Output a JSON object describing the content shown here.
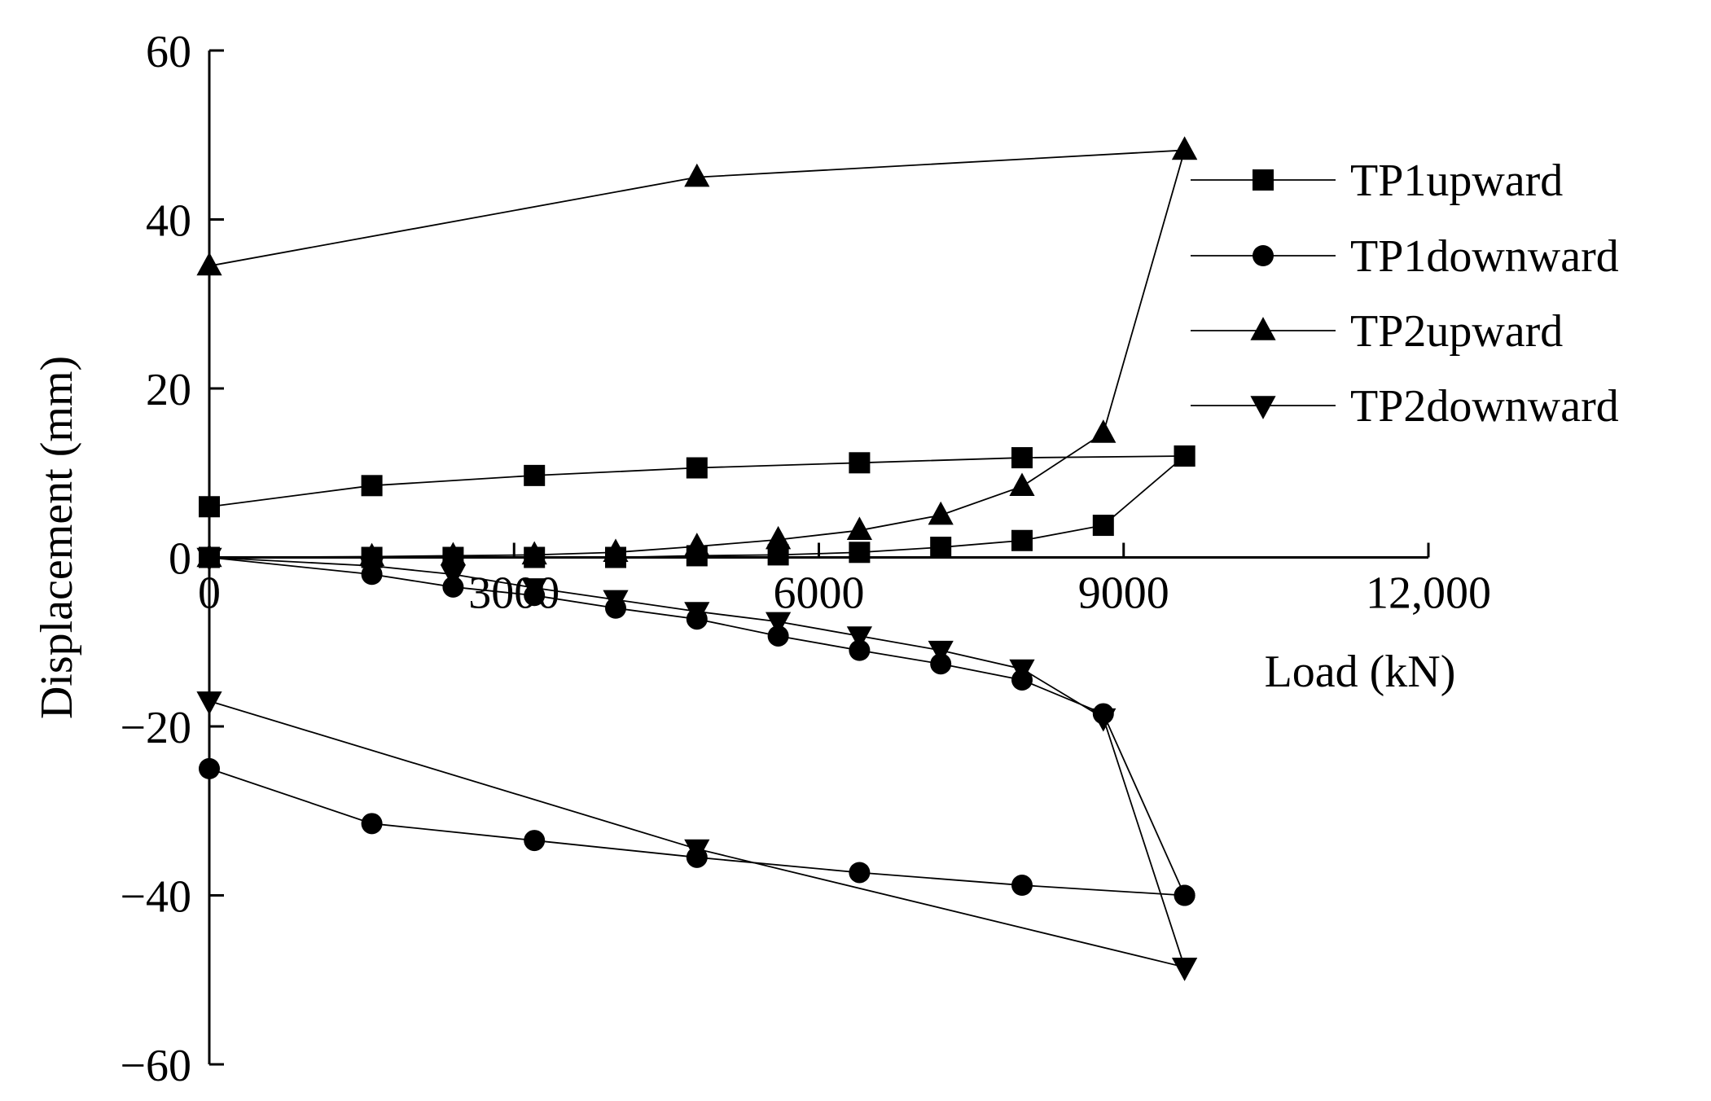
{
  "chart_data": {
    "type": "line",
    "title": "",
    "xlabel": "Load (kN)",
    "ylabel": "Displacement (mm)",
    "xlim": [
      0,
      12000
    ],
    "ylim": [
      -60,
      60
    ],
    "x_ticks": [
      0,
      3000,
      6000,
      9000,
      12000
    ],
    "x_tick_labels": [
      "0",
      "3000",
      "6000",
      "9000",
      "12,000"
    ],
    "y_ticks": [
      -60,
      -40,
      -20,
      0,
      20,
      40,
      60
    ],
    "y_tick_labels": [
      "−60",
      "−40",
      "−20",
      "0",
      "20",
      "40",
      "60"
    ],
    "grid": false,
    "legend_position": "right",
    "series": [
      {
        "name": "TP1upward",
        "marker": "square",
        "color": "#000000",
        "segments": [
          [
            [
              0,
              0
            ],
            [
              1600,
              0
            ],
            [
              2400,
              0
            ],
            [
              3200,
              0
            ],
            [
              4000,
              0
            ],
            [
              4800,
              0.2
            ],
            [
              5600,
              0.3
            ],
            [
              6400,
              0.6
            ],
            [
              7200,
              1.2
            ],
            [
              8000,
              2
            ],
            [
              8800,
              3.8
            ],
            [
              9600,
              12
            ]
          ],
          [
            [
              0,
              6
            ],
            [
              1600,
              8.5
            ],
            [
              3200,
              9.7
            ],
            [
              4800,
              10.6
            ],
            [
              6400,
              11.2
            ],
            [
              8000,
              11.8
            ],
            [
              9600,
              12
            ]
          ]
        ]
      },
      {
        "name": "TP1downward",
        "marker": "circle",
        "color": "#000000",
        "segments": [
          [
            [
              0,
              0
            ],
            [
              1600,
              -2
            ],
            [
              2400,
              -3.5
            ],
            [
              3200,
              -4.5
            ],
            [
              4000,
              -6
            ],
            [
              4800,
              -7.3
            ],
            [
              5600,
              -9.3
            ],
            [
              6400,
              -11
            ],
            [
              7200,
              -12.6
            ],
            [
              8000,
              -14.5
            ],
            [
              8800,
              -18.5
            ],
            [
              9600,
              -40
            ]
          ],
          [
            [
              0,
              -25
            ],
            [
              1600,
              -31.5
            ],
            [
              3200,
              -33.5
            ],
            [
              4800,
              -35.5
            ],
            [
              6400,
              -37.3
            ],
            [
              8000,
              -38.8
            ],
            [
              9600,
              -40
            ]
          ]
        ]
      },
      {
        "name": "TP2upward",
        "marker": "triangle-up",
        "color": "#000000",
        "segments": [
          [
            [
              0,
              0
            ],
            [
              1600,
              0.1
            ],
            [
              2400,
              0.2
            ],
            [
              3200,
              0.3
            ],
            [
              4000,
              0.6
            ],
            [
              4800,
              1.3
            ],
            [
              5600,
              2.1
            ],
            [
              6400,
              3.2
            ],
            [
              7200,
              5
            ],
            [
              8000,
              8.4
            ],
            [
              8800,
              14.7
            ],
            [
              9600,
              48.2
            ]
          ],
          [
            [
              0,
              34.5
            ],
            [
              4800,
              45
            ],
            [
              9600,
              48.2
            ]
          ]
        ]
      },
      {
        "name": "TP2downward",
        "marker": "triangle-down",
        "color": "#000000",
        "segments": [
          [
            [
              0,
              0
            ],
            [
              1600,
              -1
            ],
            [
              2400,
              -2
            ],
            [
              3200,
              -3.6
            ],
            [
              4000,
              -5
            ],
            [
              4800,
              -6.4
            ],
            [
              5600,
              -7.6
            ],
            [
              6400,
              -9.3
            ],
            [
              7200,
              -11
            ],
            [
              8000,
              -13.2
            ],
            [
              8800,
              -19
            ],
            [
              9600,
              -48.5
            ]
          ],
          [
            [
              0,
              -17
            ],
            [
              4800,
              -34.5
            ],
            [
              9600,
              -48.5
            ]
          ]
        ]
      }
    ]
  }
}
